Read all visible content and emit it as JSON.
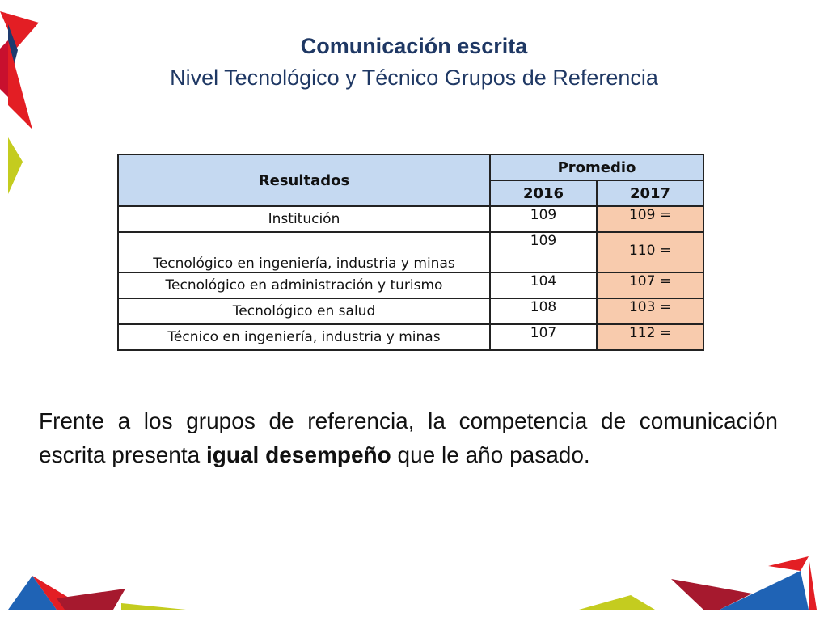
{
  "header": {
    "title": "Comunicación escrita",
    "subtitle": "Nivel Tecnológico y Técnico Grupos de Referencia"
  },
  "table": {
    "col_results": "Resultados",
    "col_average": "Promedio",
    "year1": "2016",
    "year2": "2017",
    "rows": [
      {
        "label": "Institución",
        "v2016": "109",
        "v2017": "109 ="
      },
      {
        "label": "Tecnológico en ingeniería, industria y minas",
        "v2016": "109",
        "v2017": "110 ="
      },
      {
        "label": "Tecnológico en administración y turismo",
        "v2016": "104",
        "v2017": "107 ="
      },
      {
        "label": "Tecnológico en salud",
        "v2016": "108",
        "v2017": "103 ="
      },
      {
        "label": "Técnico en ingeniería, industria y minas",
        "v2016": "107",
        "v2017": "112 ="
      }
    ]
  },
  "body": {
    "text_before": "Frente a los grupos de referencia, la competencia de comunicación escrita presenta ",
    "text_bold": "igual desempeño",
    "text_after": " que le año pasado."
  },
  "colors": {
    "title": "#1f3864",
    "header_fill": "#c5d9f1",
    "highlight_fill": "#f8cbad",
    "deco_red": "#e31e24",
    "deco_darkred": "#a6192e",
    "deco_blue": "#1f63b5",
    "deco_navy": "#1e3a6e",
    "deco_lime": "#c4cc1f"
  }
}
